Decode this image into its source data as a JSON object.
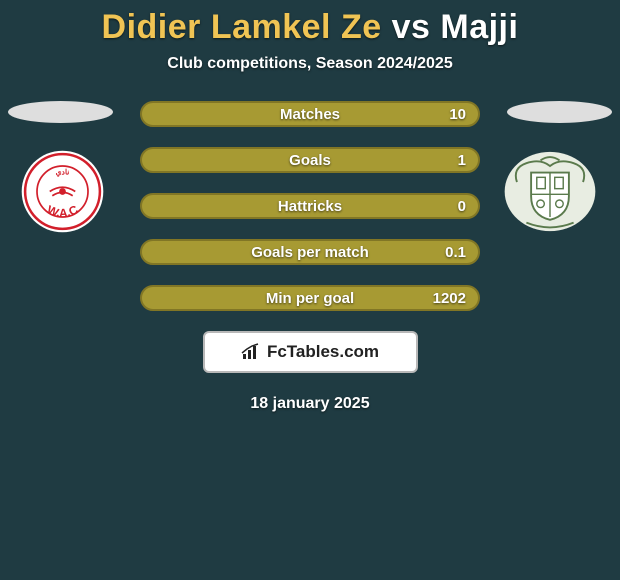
{
  "page": {
    "background_color": "#1f3b42",
    "text_color": "#ffffff"
  },
  "title": {
    "player1": "Didier Lamkel Ze",
    "vs": "vs",
    "player2": "Majji",
    "player1_color": "#f0c454",
    "vs_color": "#ffffff",
    "player2_color": "#ffffff"
  },
  "subtitle": "Club competitions, Season 2024/2025",
  "ellipse_color": "#dedede",
  "badges": {
    "left": {
      "bg": "#ffffff",
      "ring": "#d21f2b",
      "text_color": "#d21f2b",
      "arc_text": "W.A.C"
    },
    "right": {
      "bg": "#ffffff",
      "stroke": "#5a7a4c",
      "fill": "#e8ede2"
    }
  },
  "bars": {
    "fill_color": "#a79a33",
    "border_color": "#817625",
    "label_color": "#ffffff",
    "value_color": "#ffffff",
    "rows": [
      {
        "label": "Matches",
        "value": "10"
      },
      {
        "label": "Goals",
        "value": "1"
      },
      {
        "label": "Hattricks",
        "value": "0"
      },
      {
        "label": "Goals per match",
        "value": "0.1"
      },
      {
        "label": "Min per goal",
        "value": "1202"
      }
    ]
  },
  "footer_badge": {
    "bg": "#ffffff",
    "border": "#b8b8b8",
    "text_color": "#222222",
    "text": "FcTables.com"
  },
  "footer_date": "18 january 2025"
}
